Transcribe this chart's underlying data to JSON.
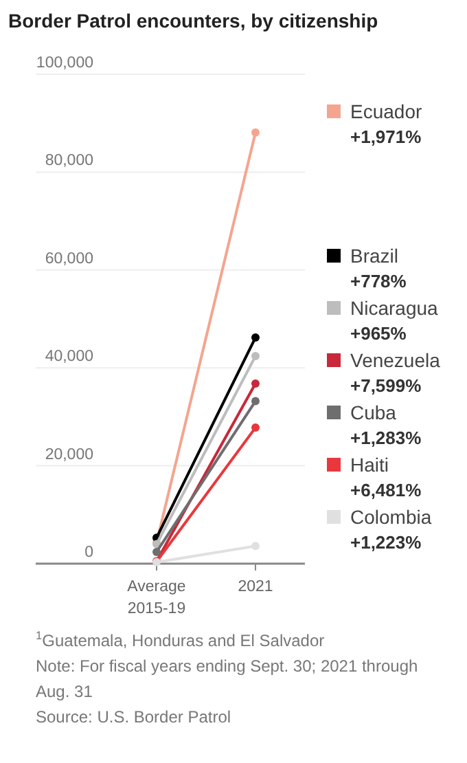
{
  "chart_data": {
    "type": "line",
    "title": "Border Patrol encounters, by citizenship",
    "categories": [
      "Average 2015-19",
      "2021"
    ],
    "series": [
      {
        "name": "Ecuador",
        "color": "#f4a58f",
        "values": [
          4300,
          88100
        ]
      },
      {
        "name": "Brazil",
        "color": "#000000",
        "values": [
          5300,
          46200
        ]
      },
      {
        "name": "Nicaragua",
        "color": "#bdbdbd",
        "values": [
          4000,
          42400
        ]
      },
      {
        "name": "Venezuela",
        "color": "#c8283a",
        "values": [
          500,
          36800
        ]
      },
      {
        "name": "Cuba",
        "color": "#6e6e6e",
        "values": [
          2400,
          33200
        ]
      },
      {
        "name": "Haiti",
        "color": "#e8383d",
        "values": [
          400,
          27800
        ]
      },
      {
        "name": "Colombia",
        "color": "#e0e0e0",
        "values": [
          300,
          3600
        ]
      }
    ],
    "ylim": [
      0,
      100000
    ],
    "yticks": [
      {
        "value": 0,
        "label": "0"
      },
      {
        "value": 20000,
        "label": "20,000"
      },
      {
        "value": 40000,
        "label": "40,000"
      },
      {
        "value": 60000,
        "label": "60,000"
      },
      {
        "value": 80000,
        "label": "80,000"
      },
      {
        "value": 100000,
        "label": "100,000"
      }
    ],
    "grid": "y",
    "legend": "right",
    "marker": "circle",
    "line_style": "solid",
    "annotations": [
      "+1,971%",
      "+778%",
      "+965%",
      "+7,599%",
      "+1,283%",
      "+6,481%",
      "+1,223%",
      "$^{1}$Guatemala, Honduras and El Salvador",
      "Note: For fiscal years ending Sept. 30; 2021 through Aug. 31",
      "Source: U.S. Border Patrol"
    ]
  }
}
